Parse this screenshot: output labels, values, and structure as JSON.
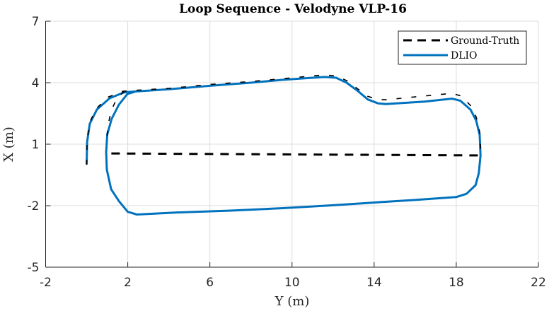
{
  "chart_data": {
    "type": "line",
    "title": "Loop Sequence - Velodyne VLP-16",
    "xlabel": "Y (m)",
    "ylabel": "X (m)",
    "xlim": [
      -2,
      22
    ],
    "ylim": [
      -5,
      7
    ],
    "xticks": [
      -2,
      2,
      6,
      10,
      14,
      18,
      22
    ],
    "yticks": [
      -5,
      -2,
      1,
      4,
      7
    ],
    "xtick_labels": [
      "-2",
      "2",
      "6",
      "10",
      "14",
      "18",
      "22"
    ],
    "ytick_labels": [
      "-5",
      "-2",
      "1",
      "4",
      "7"
    ],
    "grid": true,
    "legend": {
      "position": "top-right",
      "entries": [
        {
          "name": "Ground-Truth",
          "style": "dashed",
          "color": "#000000"
        },
        {
          "name": "DLIO",
          "style": "solid",
          "color": "#0072BD"
        }
      ]
    },
    "series": [
      {
        "name": "Ground-Truth",
        "style": "dashed",
        "color": "#000000",
        "segments": [
          [
            [
              0.0,
              0.0
            ],
            [
              0.02,
              1.1
            ],
            [
              0.12,
              2.0
            ],
            [
              0.45,
              2.72
            ],
            [
              1.05,
              3.3
            ],
            [
              1.75,
              3.58
            ],
            [
              2.2,
              3.62
            ],
            [
              4.0,
              3.72
            ],
            [
              6.1,
              3.92
            ],
            [
              8.0,
              4.06
            ],
            [
              9.6,
              4.2
            ],
            [
              11.0,
              4.33
            ],
            [
              11.6,
              4.38
            ],
            [
              12.2,
              4.32
            ],
            [
              12.7,
              4.08
            ],
            [
              13.2,
              3.7
            ],
            [
              13.7,
              3.33
            ],
            [
              14.2,
              3.18
            ],
            [
              14.6,
              3.17
            ],
            [
              16.4,
              3.35
            ],
            [
              17.8,
              3.48
            ],
            [
              18.25,
              3.35
            ],
            [
              18.7,
              2.88
            ],
            [
              18.98,
              2.3
            ],
            [
              19.15,
              1.55
            ],
            [
              19.2,
              0.5
            ]
          ],
          [
            [
              1.85,
              3.58
            ],
            [
              1.5,
              3.3
            ],
            [
              1.2,
              2.65
            ],
            [
              1.02,
              1.85
            ],
            [
              0.98,
              1.0
            ]
          ],
          [
            [
              1.2,
              0.55
            ],
            [
              19.18,
              0.45
            ]
          ]
        ]
      },
      {
        "name": "DLIO",
        "style": "solid",
        "color": "#0072BD",
        "points": [
          [
            0.0,
            0.05
          ],
          [
            0.02,
            1.1
          ],
          [
            0.15,
            2.0
          ],
          [
            0.5,
            2.7
          ],
          [
            1.12,
            3.24
          ],
          [
            1.8,
            3.52
          ],
          [
            2.2,
            3.56
          ],
          [
            4.0,
            3.68
          ],
          [
            6.1,
            3.86
          ],
          [
            8.0,
            4.0
          ],
          [
            9.56,
            4.14
          ],
          [
            11.0,
            4.24
          ],
          [
            11.6,
            4.28
          ],
          [
            12.15,
            4.24
          ],
          [
            12.66,
            4.0
          ],
          [
            13.2,
            3.6
          ],
          [
            13.7,
            3.18
          ],
          [
            14.2,
            2.99
          ],
          [
            14.56,
            2.96
          ],
          [
            16.45,
            3.08
          ],
          [
            17.8,
            3.22
          ],
          [
            18.2,
            3.12
          ],
          [
            18.7,
            2.68
          ],
          [
            18.97,
            2.15
          ],
          [
            19.14,
            1.45
          ],
          [
            19.18,
            0.45
          ],
          [
            19.1,
            -0.41
          ],
          [
            18.94,
            -1.0
          ],
          [
            18.5,
            -1.42
          ],
          [
            18.0,
            -1.58
          ],
          [
            16.0,
            -1.72
          ],
          [
            14.4,
            -1.82
          ],
          [
            12.0,
            -1.98
          ],
          [
            9.56,
            -2.12
          ],
          [
            7.0,
            -2.24
          ],
          [
            4.4,
            -2.33
          ],
          [
            2.45,
            -2.43
          ],
          [
            2.0,
            -2.3
          ],
          [
            1.57,
            -1.78
          ],
          [
            1.19,
            -1.2
          ],
          [
            0.98,
            -0.24
          ],
          [
            0.95,
            0.62
          ],
          [
            1.0,
            1.48
          ],
          [
            1.22,
            2.24
          ],
          [
            1.57,
            2.93
          ],
          [
            1.98,
            3.45
          ],
          [
            2.35,
            3.56
          ]
        ]
      }
    ]
  }
}
